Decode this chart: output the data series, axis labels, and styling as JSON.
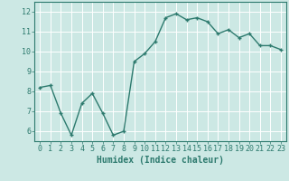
{
  "x": [
    0,
    1,
    2,
    3,
    4,
    5,
    6,
    7,
    8,
    9,
    10,
    11,
    12,
    13,
    14,
    15,
    16,
    17,
    18,
    19,
    20,
    21,
    22,
    23
  ],
  "y": [
    8.2,
    8.3,
    6.9,
    5.8,
    7.4,
    7.9,
    6.9,
    5.8,
    6.0,
    9.5,
    9.9,
    10.5,
    11.7,
    11.9,
    11.6,
    11.7,
    11.5,
    10.9,
    11.1,
    10.7,
    10.9,
    10.3,
    10.3,
    10.1
  ],
  "line_color": "#2d7a6e",
  "marker": "+",
  "marker_size": 3,
  "linewidth": 1.0,
  "xlabel": "Humidex (Indice chaleur)",
  "xlim": [
    -0.5,
    23.5
  ],
  "ylim": [
    5.5,
    12.5
  ],
  "yticks": [
    6,
    7,
    8,
    9,
    10,
    11,
    12
  ],
  "xticks": [
    0,
    1,
    2,
    3,
    4,
    5,
    6,
    7,
    8,
    9,
    10,
    11,
    12,
    13,
    14,
    15,
    16,
    17,
    18,
    19,
    20,
    21,
    22,
    23
  ],
  "bg_color": "#cce8e4",
  "grid_color": "#ffffff",
  "tick_color": "#2d7a6e",
  "label_color": "#2d7a6e",
  "xlabel_fontsize": 7,
  "tick_fontsize": 6
}
